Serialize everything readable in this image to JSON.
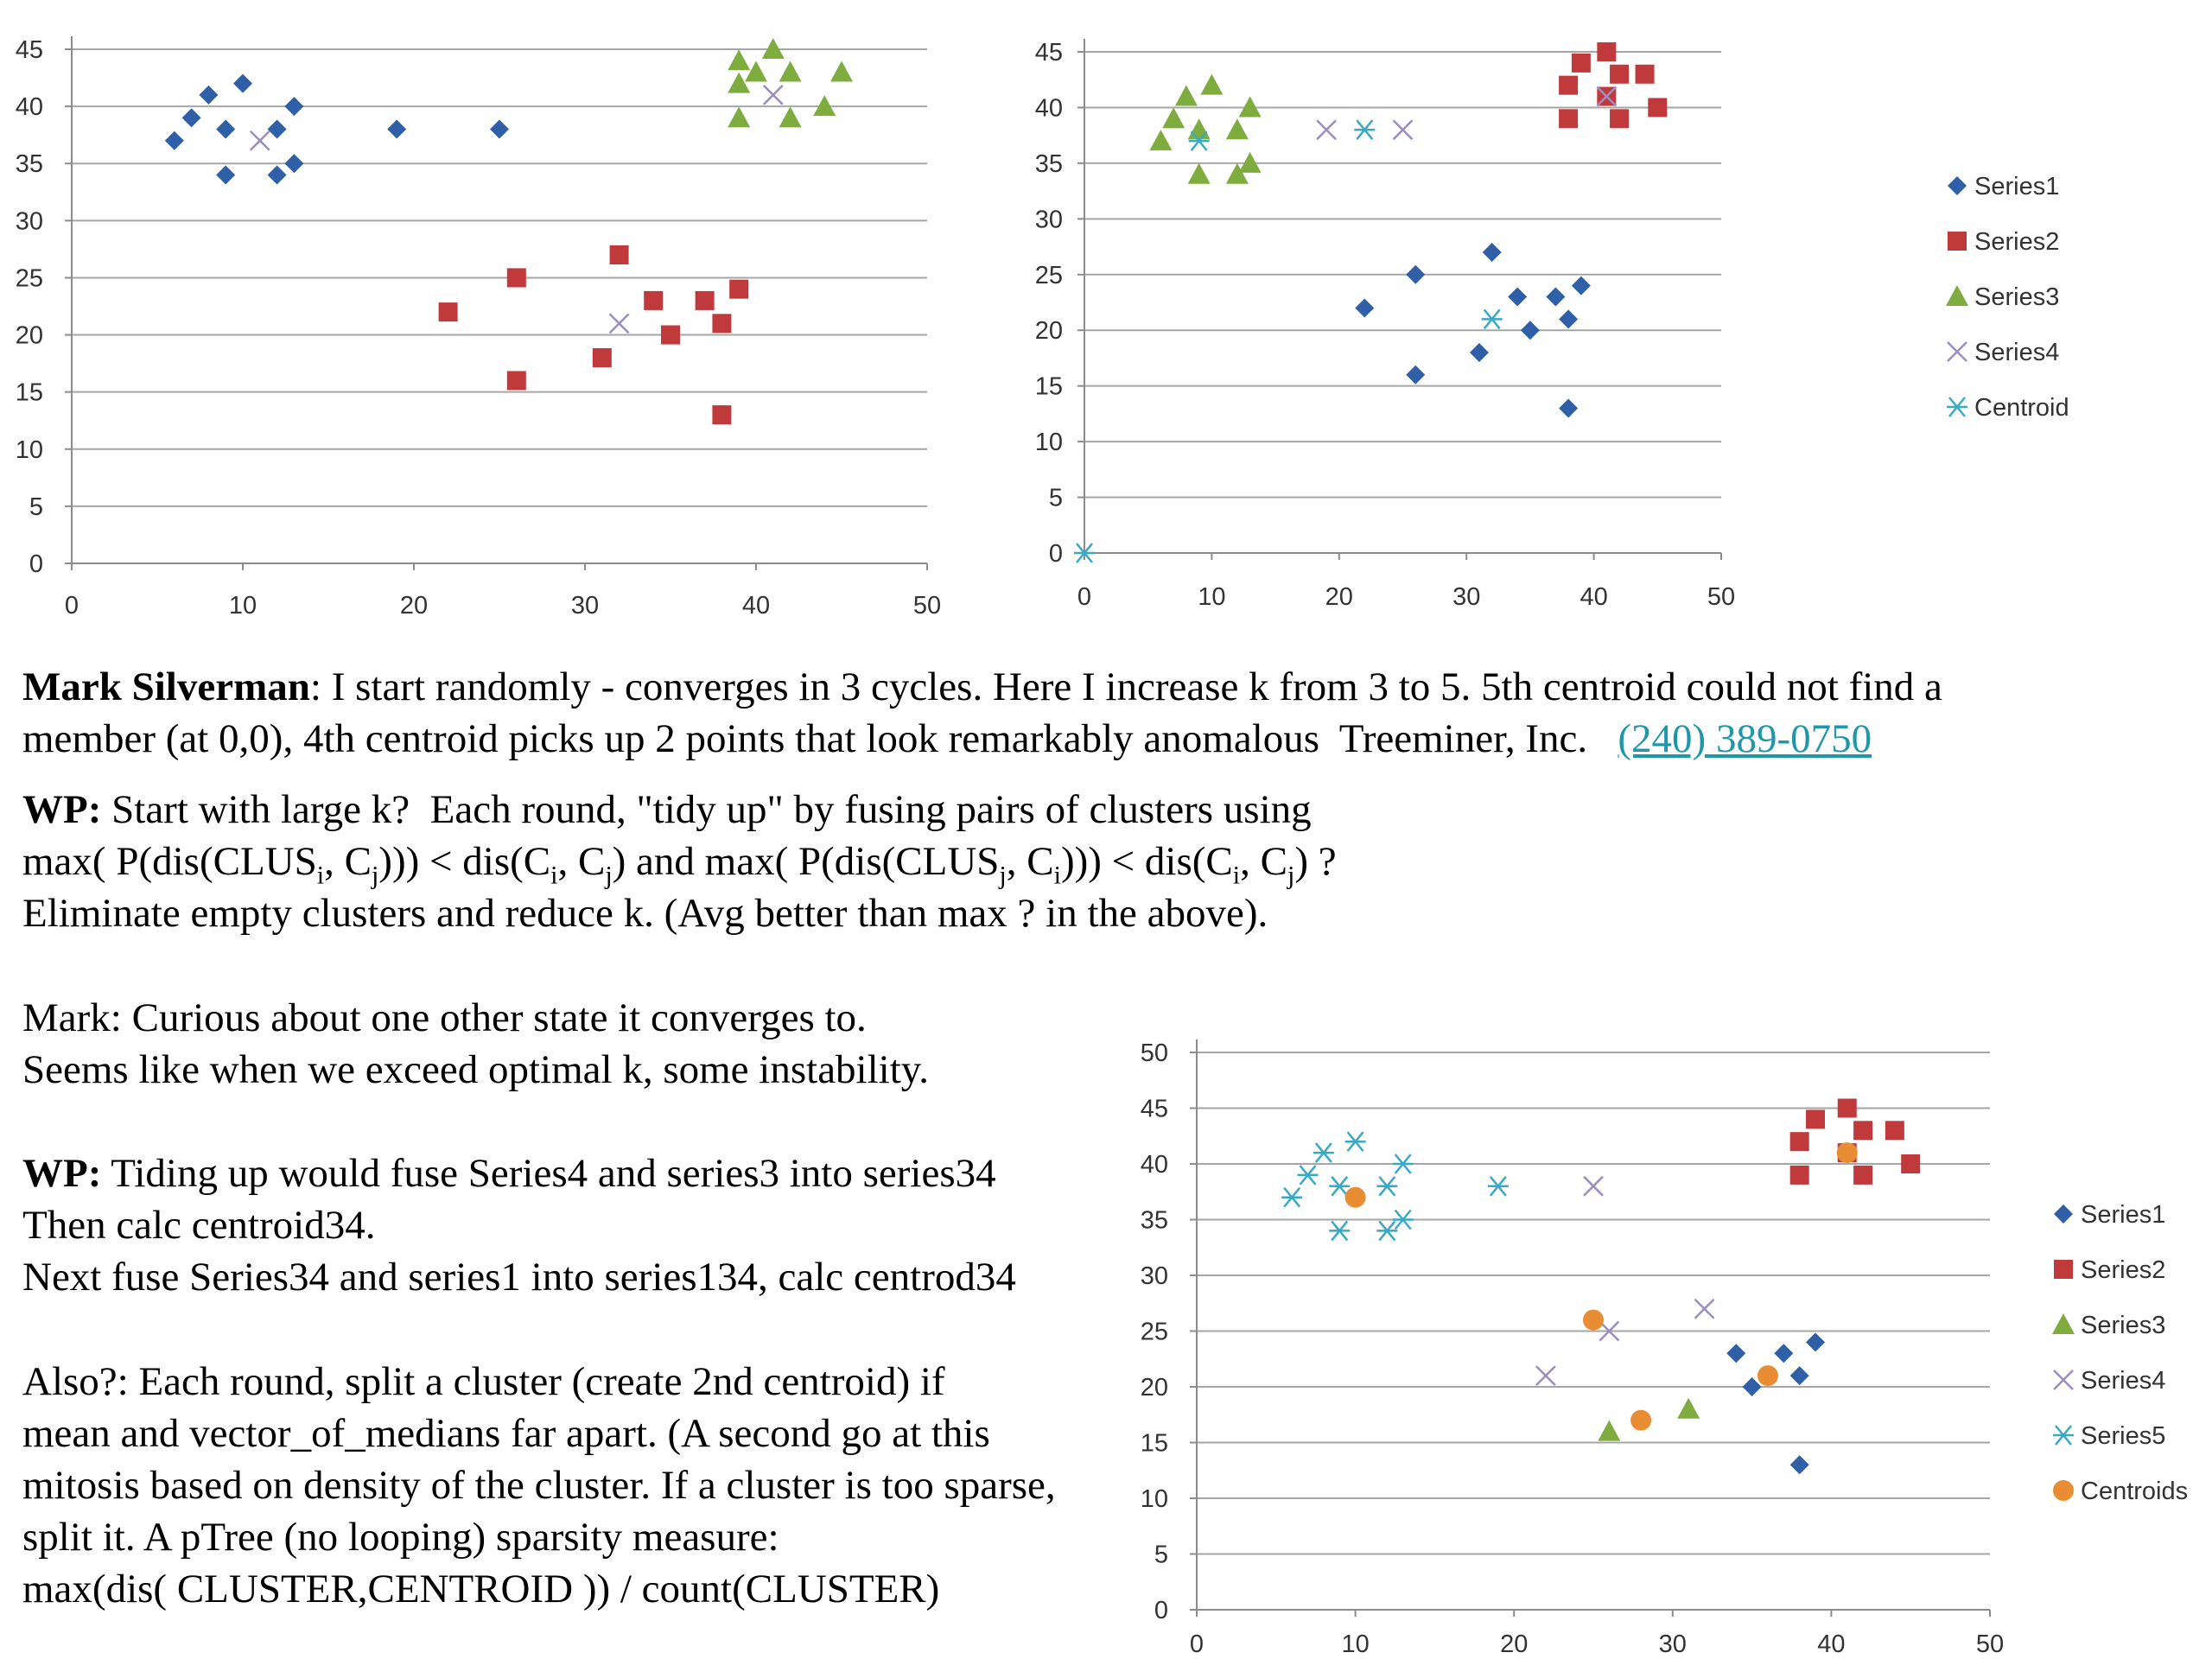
{
  "colors": {
    "series1": "#2f5fa6",
    "series2": "#c0393b",
    "series3": "#7fac3e",
    "series4": "#9b8cc2",
    "series5": "#3aa9c4",
    "centroid": "#3aa9c4",
    "centroids": "#e98d34",
    "grid": "#a6a6a6",
    "axis": "#8c8c8c",
    "link": "#1f97a8"
  },
  "chart_data": [
    {
      "id": "chart1",
      "type": "scatter",
      "title": "",
      "xlabel": "",
      "ylabel": "",
      "xlim": [
        0,
        50
      ],
      "ylim": [
        0,
        45
      ],
      "xticks": [
        "0",
        "10",
        "20",
        "30",
        "40",
        "50"
      ],
      "yticks": [
        "0",
        "5",
        "10",
        "15",
        "20",
        "25",
        "30",
        "35",
        "40",
        "45"
      ],
      "grid": "horizontal",
      "legend": "none",
      "series": [
        {
          "key": "series1",
          "marker": "diamond",
          "points": [
            [
              6,
              37
            ],
            [
              7,
              39
            ],
            [
              8,
              41
            ],
            [
              9,
              38
            ],
            [
              10,
              42
            ],
            [
              9,
              34
            ],
            [
              12,
              38
            ],
            [
              12,
              34
            ],
            [
              13,
              40
            ],
            [
              13,
              35
            ],
            [
              19,
              38
            ],
            [
              25,
              38
            ]
          ]
        },
        {
          "key": "series2",
          "marker": "square",
          "points": [
            [
              22,
              22
            ],
            [
              26,
              25
            ],
            [
              26,
              16
            ],
            [
              32,
              27
            ],
            [
              34,
              23
            ],
            [
              35,
              20
            ],
            [
              31,
              18
            ],
            [
              37,
              23
            ],
            [
              38,
              21
            ],
            [
              39,
              24
            ],
            [
              38,
              13
            ]
          ]
        },
        {
          "key": "series3",
          "marker": "triangle",
          "points": [
            [
              39,
              44
            ],
            [
              41,
              45
            ],
            [
              42,
              43
            ],
            [
              45,
              43
            ],
            [
              39,
              42
            ],
            [
              40,
              43
            ],
            [
              44,
              40
            ],
            [
              39,
              39
            ],
            [
              42,
              39
            ]
          ]
        },
        {
          "key": "series4",
          "marker": "x",
          "points": [
            [
              11,
              37
            ],
            [
              32,
              21
            ],
            [
              41,
              41
            ]
          ]
        }
      ]
    },
    {
      "id": "chart2",
      "type": "scatter",
      "title": "",
      "xlabel": "",
      "ylabel": "",
      "xlim": [
        0,
        50
      ],
      "ylim": [
        0,
        45
      ],
      "xticks": [
        "0",
        "10",
        "20",
        "30",
        "40",
        "50"
      ],
      "yticks": [
        "0",
        "5",
        "10",
        "15",
        "20",
        "25",
        "30",
        "35",
        "40",
        "45"
      ],
      "grid": "horizontal",
      "legend": "right",
      "series": [
        {
          "key": "series1",
          "name": "Series1",
          "marker": "diamond",
          "points": [
            [
              22,
              22
            ],
            [
              26,
              25
            ],
            [
              26,
              16
            ],
            [
              32,
              27
            ],
            [
              34,
              23
            ],
            [
              35,
              20
            ],
            [
              31,
              18
            ],
            [
              37,
              23
            ],
            [
              38,
              21
            ],
            [
              39,
              24
            ],
            [
              38,
              13
            ]
          ]
        },
        {
          "key": "series2",
          "name": "Series2",
          "marker": "square",
          "points": [
            [
              41,
              45
            ],
            [
              39,
              44
            ],
            [
              38,
              42
            ],
            [
              42,
              43
            ],
            [
              44,
              43
            ],
            [
              41,
              41
            ],
            [
              38,
              39
            ],
            [
              42,
              39
            ],
            [
              45,
              40
            ]
          ]
        },
        {
          "key": "series3",
          "name": "Series3",
          "marker": "triangle",
          "points": [
            [
              6,
              37
            ],
            [
              7,
              39
            ],
            [
              8,
              41
            ],
            [
              9,
              38
            ],
            [
              10,
              42
            ],
            [
              9,
              34
            ],
            [
              12,
              38
            ],
            [
              12,
              34
            ],
            [
              13,
              40
            ],
            [
              13,
              35
            ]
          ]
        },
        {
          "key": "series4",
          "name": "Series4",
          "marker": "x",
          "points": [
            [
              19,
              38
            ],
            [
              25,
              38
            ],
            [
              41,
              41
            ]
          ]
        },
        {
          "key": "centroid",
          "name": "Centroid",
          "marker": "asterisk",
          "points": [
            [
              0,
              0
            ],
            [
              9,
              37
            ],
            [
              22,
              38
            ],
            [
              32,
              21
            ]
          ]
        }
      ]
    },
    {
      "id": "chart3",
      "type": "scatter",
      "title": "",
      "xlabel": "",
      "ylabel": "",
      "xlim": [
        0,
        50
      ],
      "ylim": [
        0,
        50
      ],
      "xticks": [
        "0",
        "10",
        "20",
        "30",
        "40",
        "50"
      ],
      "yticks": [
        "0",
        "5",
        "10",
        "15",
        "20",
        "25",
        "30",
        "35",
        "40",
        "45",
        "50"
      ],
      "grid": "horizontal",
      "legend": "right",
      "series": [
        {
          "key": "series1",
          "name": "Series1",
          "marker": "diamond",
          "points": [
            [
              34,
              23
            ],
            [
              37,
              23
            ],
            [
              39,
              24
            ],
            [
              35,
              20
            ],
            [
              38,
              21
            ],
            [
              38,
              13
            ]
          ]
        },
        {
          "key": "series2",
          "name": "Series2",
          "marker": "square",
          "points": [
            [
              41,
              45
            ],
            [
              39,
              44
            ],
            [
              38,
              42
            ],
            [
              42,
              43
            ],
            [
              44,
              43
            ],
            [
              41,
              41
            ],
            [
              38,
              39
            ],
            [
              42,
              39
            ],
            [
              45,
              40
            ]
          ]
        },
        {
          "key": "series3",
          "name": "Series3",
          "marker": "triangle",
          "points": [
            [
              26,
              16
            ],
            [
              31,
              18
            ]
          ]
        },
        {
          "key": "series4",
          "name": "Series4",
          "marker": "x",
          "points": [
            [
              25,
              38
            ],
            [
              22,
              21
            ],
            [
              26,
              25
            ],
            [
              32,
              27
            ]
          ]
        },
        {
          "key": "series5",
          "name": "Series5",
          "marker": "asterisk",
          "points": [
            [
              6,
              37
            ],
            [
              7,
              39
            ],
            [
              8,
              41
            ],
            [
              9,
              38
            ],
            [
              10,
              42
            ],
            [
              9,
              34
            ],
            [
              12,
              38
            ],
            [
              12,
              34
            ],
            [
              13,
              40
            ],
            [
              13,
              35
            ],
            [
              19,
              38
            ]
          ]
        },
        {
          "key": "centroids",
          "name": "Centroids",
          "marker": "circle",
          "points": [
            [
              10,
              37
            ],
            [
              25,
              26
            ],
            [
              28,
              17
            ],
            [
              36,
              21
            ],
            [
              41,
              41
            ]
          ]
        }
      ]
    }
  ],
  "text": {
    "p1": {
      "name": "Mark Silverman",
      "l1_rest": ":  I start randomly - converges in 3 cycles.       Here I increase k from 3 to 5.  5th centroid could not find a",
      "l2": "member (at 0,0), 4th centroid picks up 2 points that look remarkably anomalous  Treeminer, Inc.   ",
      "phone": "(240) 389-0750"
    },
    "p2": {
      "label": "WP:",
      "l1_rest": " Start with large k?  Each round, \"tidy up\" by fusing pairs of clusters using",
      "l2_a": "max( P(dis(CLUS",
      "l2_sub_i": "i",
      "l2_b": ", C",
      "l2_sub_j": "j",
      "l2_c": "))) < dis(C",
      "l2_sub_i2": "i",
      "l2_d": ", C",
      "l2_sub_j2": "j",
      "l2_e": ") and max( P(dis(CLUS",
      "l2_sub_j3": "j",
      "l2_f": ", C",
      "l2_sub_i3": "i",
      "l2_g": "))) < dis(C",
      "l2_sub_i4": "i",
      "l2_h": ", C",
      "l2_sub_j4": "j",
      "l2_i": ") ?",
      "l3": "Eliminate empty clusters and reduce k.  (Avg better than max ? in the above)."
    },
    "p3": {
      "l1": "Mark: Curious about one other state it converges to.",
      "l2": "Seems like when we exceed optimal k, some instability."
    },
    "p4": {
      "label": "WP:",
      "l1_rest": " Tiding up would fuse Series4 and series3 into series34",
      "l2": "Then calc centroid34.",
      "l3": "Next fuse Series34 and series1 into series134, calc centrod34"
    },
    "p5": {
      "l1": "Also?: Each round, split a cluster (create 2nd centroid) if",
      "l2": "mean and vector_of_medians far apart. (A second go at this",
      "l3": "mitosis based on density of the cluster.  If a cluster is too sparse,",
      "l4": "split it. A pTree (no looping) sparsity measure:",
      "l5": "max(dis( CLUSTER,CENTROID )) / count(CLUSTER)"
    }
  }
}
